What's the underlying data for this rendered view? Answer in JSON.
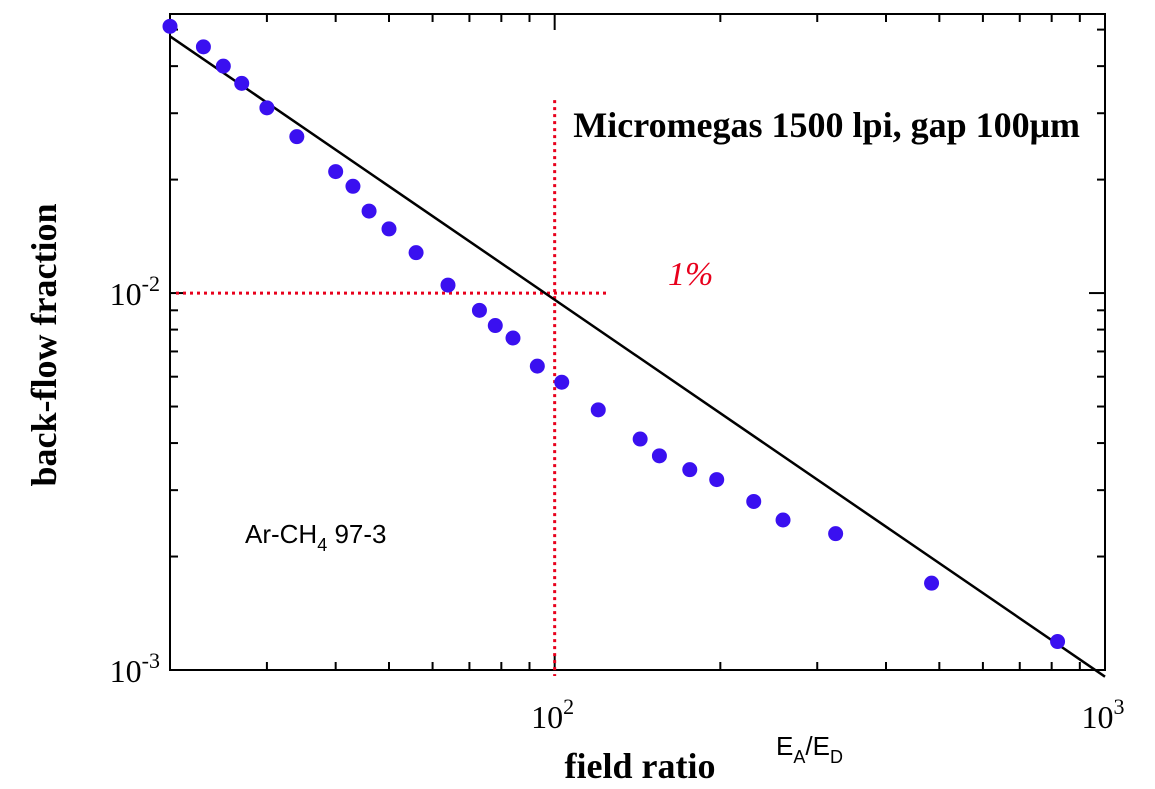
{
  "chart_data": {
    "type": "scatter",
    "title": "Micromegas 1500 lpi, gap 100μm",
    "xlabel": "field ratio",
    "xlabel_secondary": {
      "base": "E",
      "sub1": "A",
      "sep": "/",
      "sub2": "D"
    },
    "ylabel": "back-flow fraction",
    "xscale": "log",
    "yscale": "log",
    "xlim": [
      20,
      1000
    ],
    "ylim": [
      0.001,
      0.055
    ],
    "x_ticks": [
      {
        "base": "10",
        "exp": "2",
        "value": 100
      },
      {
        "base": "10",
        "exp": "3",
        "value": 1000
      }
    ],
    "y_ticks": [
      {
        "base": "10",
        "exp": "-2",
        "value": 0.01
      },
      {
        "base": "10",
        "exp": "-3",
        "value": 0.001
      }
    ],
    "annotation_gas": {
      "prefix": "Ar-CH",
      "sub": "4",
      "suffix": " 97-3"
    },
    "annotation_percent": "1%",
    "series": [
      {
        "marker_color": "#3a10f0",
        "points": [
          [
            20,
            0.051
          ],
          [
            23,
            0.045
          ],
          [
            25,
            0.04
          ],
          [
            27,
            0.036
          ],
          [
            30,
            0.031
          ],
          [
            34,
            0.026
          ],
          [
            40,
            0.021
          ],
          [
            43,
            0.0192
          ],
          [
            46,
            0.0165
          ],
          [
            50,
            0.0148
          ],
          [
            56,
            0.0128
          ],
          [
            64,
            0.0105
          ],
          [
            73,
            0.009
          ],
          [
            78,
            0.0082
          ],
          [
            84,
            0.0076
          ],
          [
            93,
            0.0064
          ],
          [
            103,
            0.0058
          ],
          [
            120,
            0.0049
          ],
          [
            143,
            0.0041
          ],
          [
            155,
            0.0037
          ],
          [
            176,
            0.0034
          ],
          [
            197,
            0.0032
          ],
          [
            230,
            0.0028
          ],
          [
            260,
            0.0025
          ],
          [
            324,
            0.0023
          ],
          [
            484,
            0.0017
          ],
          [
            820,
            0.00119
          ]
        ]
      }
    ],
    "fit_line": {
      "x": [
        20,
        1000
      ],
      "y": [
        0.048,
        0.00096
      ],
      "color": "#000000"
    },
    "reference_lines": {
      "x": 100,
      "y": 0.01,
      "color": "#e8001c"
    },
    "grid": false,
    "legend": "none"
  }
}
